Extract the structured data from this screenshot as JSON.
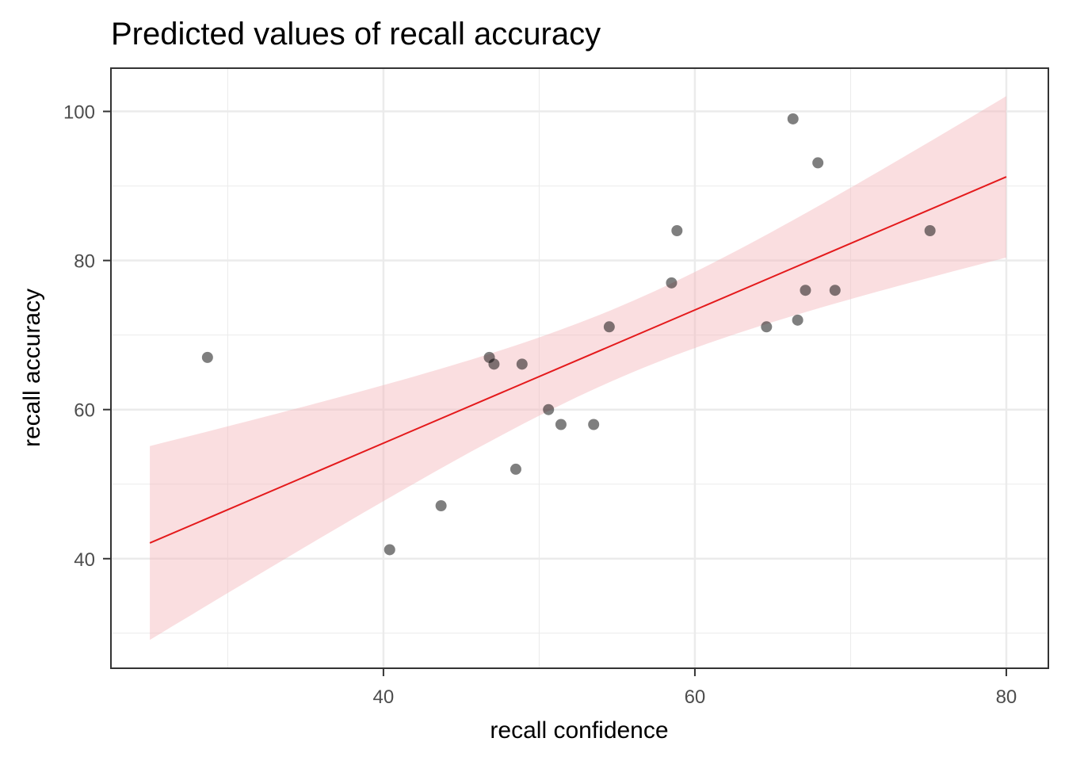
{
  "chart_data": {
    "type": "scatter",
    "title": "Predicted values of recall accuracy",
    "xlabel": "recall confidence",
    "ylabel": "recall accuracy",
    "xlim": [
      22.5,
      82.7
    ],
    "ylim": [
      25.3,
      105.8
    ],
    "x_ticks": [
      40,
      60,
      80
    ],
    "y_ticks": [
      40,
      60,
      80,
      100
    ],
    "x_tick_labels": [
      "40",
      "60",
      "80"
    ],
    "y_tick_labels": [
      "40",
      "60",
      "80",
      "100"
    ],
    "grid": true,
    "legend": "none",
    "colors": {
      "points": "#000000",
      "fit_line": "#E41A1C",
      "ribbon": "#F4B6BA",
      "panel_border": "#333333",
      "grid": "#EBEBEB"
    },
    "points": [
      {
        "x": 28.7,
        "y": 67.0
      },
      {
        "x": 40.4,
        "y": 41.2
      },
      {
        "x": 43.7,
        "y": 47.1
      },
      {
        "x": 46.8,
        "y": 67.0
      },
      {
        "x": 47.1,
        "y": 66.1
      },
      {
        "x": 48.5,
        "y": 52.0
      },
      {
        "x": 48.9,
        "y": 66.1
      },
      {
        "x": 50.6,
        "y": 60.0
      },
      {
        "x": 51.4,
        "y": 58.0
      },
      {
        "x": 53.5,
        "y": 58.0
      },
      {
        "x": 54.5,
        "y": 71.1
      },
      {
        "x": 58.5,
        "y": 77.0
      },
      {
        "x": 58.85,
        "y": 84.0
      },
      {
        "x": 64.6,
        "y": 71.1
      },
      {
        "x": 66.3,
        "y": 99.0
      },
      {
        "x": 66.6,
        "y": 72.0
      },
      {
        "x": 67.1,
        "y": 76.0
      },
      {
        "x": 67.9,
        "y": 93.1
      },
      {
        "x": 69.0,
        "y": 76.0
      },
      {
        "x": 75.1,
        "y": 84.0
      }
    ],
    "fit": {
      "x_range": [
        25,
        80
      ],
      "intercept": 19.78,
      "slope": 0.893,
      "ci_lower_at_x_range": [
        29.0,
        80.3
      ],
      "ci_upper_at_x_range": [
        55.1,
        102.1
      ],
      "ci_center": 55.5,
      "ci_a": 22.82,
      "ci_b": 0.15714
    }
  }
}
